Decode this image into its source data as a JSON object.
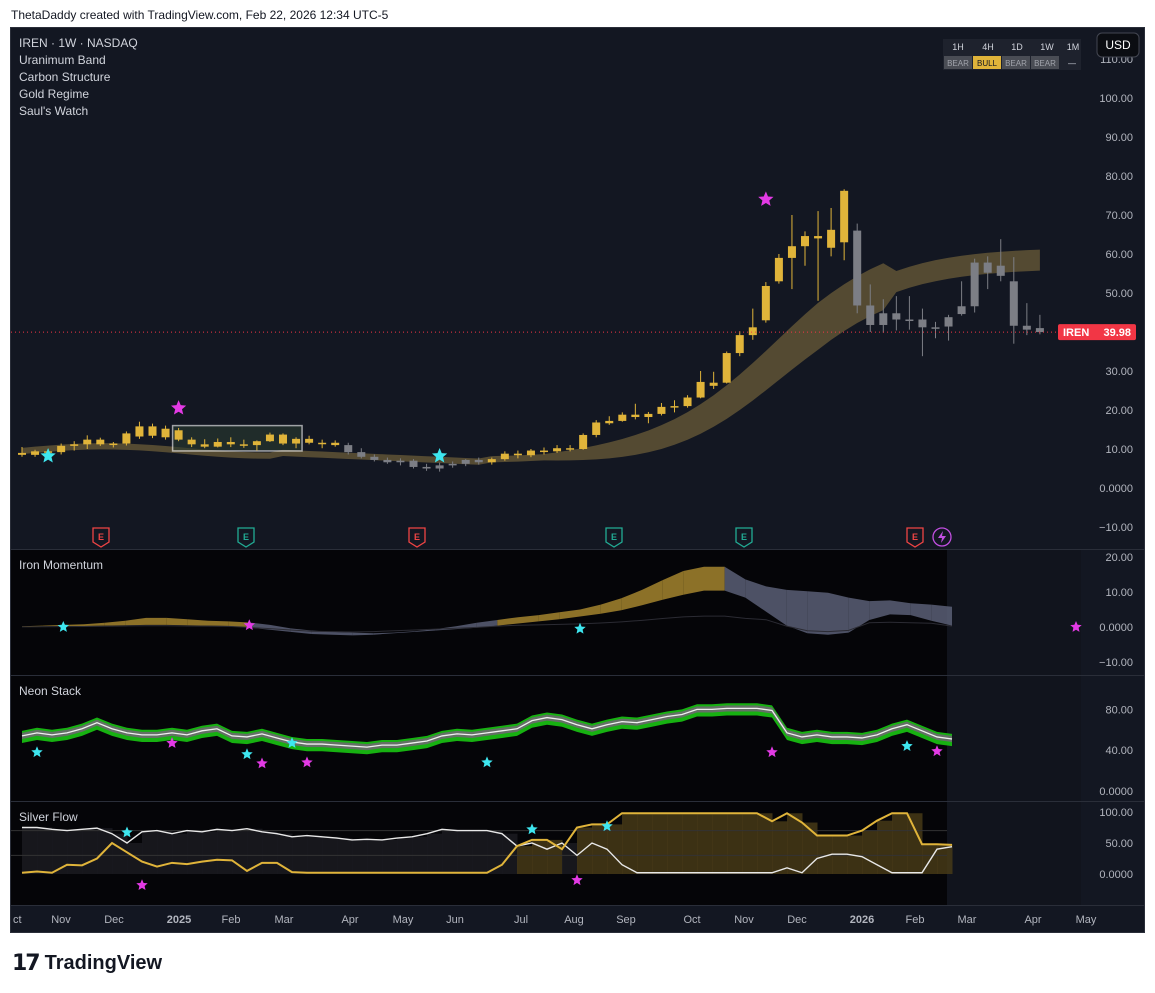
{
  "header": {
    "attribution": "ThetaDaddy created with TradingView.com, Feb 22, 2026 12:34 UTC-5"
  },
  "footer": {
    "logo_mark": "17",
    "logo_text": "TradingView"
  },
  "legend": {
    "symbol_line": "IREN · 1W · NASDAQ",
    "indicators": [
      "Uranimum Band",
      "Carbon Structure",
      "Gold Regime",
      "Saul's Watch"
    ]
  },
  "currency_button": "USD",
  "price_label": {
    "ticker": "IREN",
    "value": "39.98",
    "value_num": 39.98
  },
  "regime_table": {
    "timeframes": [
      "1H",
      "4H",
      "1D",
      "1W",
      "1M"
    ],
    "states": [
      "BEAR",
      "BULL",
      "BEAR",
      "BEAR",
      "—"
    ]
  },
  "earnings_markers": [
    "E",
    "E",
    "E",
    "E",
    "E",
    "E"
  ],
  "colors": {
    "bull": "#e0b43a",
    "bear": "#7c7e85",
    "band": "#8a7540",
    "band_bear": "#5a5f75",
    "cyan_star": "#3ee6ef",
    "magenta_star": "#e33ae5",
    "neon_green": "#19c413",
    "price_tag": "#f23645",
    "background": "#131722",
    "subpane_bg": "#050508"
  },
  "icons": {
    "star": "star-icon",
    "lightning": "lightning-icon"
  },
  "x_axis": {
    "labels": [
      "ct",
      "Nov",
      "Dec",
      "2025",
      "Feb",
      "Mar",
      "Apr",
      "May",
      "Jun",
      "Jul",
      "Aug",
      "Sep",
      "Oct",
      "Nov",
      "Dec",
      "2026",
      "Feb",
      "Mar",
      "Apr",
      "May"
    ]
  },
  "chart_data": [
    {
      "type": "candlestick",
      "title": "IREN · 1W · NASDAQ",
      "ylim": [
        -10,
        115
      ],
      "y_ticks": [
        "110.00",
        "100.00",
        "90.00",
        "80.00",
        "70.00",
        "60.00",
        "50.00",
        "40.00",
        "30.00",
        "20.00",
        "10.00",
        "0.0000",
        "−10.00"
      ],
      "last_price": 39.98,
      "candles": [
        {
          "o": 9.0,
          "h": 10.5,
          "l": 8.0,
          "c": 8.5
        },
        {
          "o": 8.5,
          "h": 9.8,
          "l": 8.0,
          "c": 9.4
        },
        {
          "o": 9.4,
          "h": 10.0,
          "l": 8.6,
          "c": 9.2
        },
        {
          "o": 9.2,
          "h": 11.4,
          "l": 8.6,
          "c": 10.8
        },
        {
          "o": 10.8,
          "h": 12.0,
          "l": 9.6,
          "c": 11.2
        },
        {
          "o": 11.2,
          "h": 13.5,
          "l": 10.0,
          "c": 12.4
        },
        {
          "o": 12.4,
          "h": 12.9,
          "l": 10.8,
          "c": 11.2
        },
        {
          "o": 11.2,
          "h": 11.8,
          "l": 10.4,
          "c": 11.4
        },
        {
          "o": 11.4,
          "h": 14.5,
          "l": 10.9,
          "c": 14.0
        },
        {
          "o": 13.2,
          "h": 17.0,
          "l": 12.6,
          "c": 15.8
        },
        {
          "o": 15.8,
          "h": 16.5,
          "l": 12.8,
          "c": 13.4
        },
        {
          "o": 13.0,
          "h": 16.0,
          "l": 12.4,
          "c": 15.2
        },
        {
          "o": 14.8,
          "h": 15.4,
          "l": 12.0,
          "c": 12.4
        },
        {
          "o": 12.4,
          "h": 13.0,
          "l": 10.5,
          "c": 11.2
        },
        {
          "o": 11.2,
          "h": 12.5,
          "l": 10.2,
          "c": 10.6
        },
        {
          "o": 10.6,
          "h": 12.7,
          "l": 10.4,
          "c": 11.8
        },
        {
          "o": 11.8,
          "h": 13.0,
          "l": 10.5,
          "c": 11.2
        },
        {
          "o": 11.2,
          "h": 12.4,
          "l": 10.3,
          "c": 11.0
        },
        {
          "o": 11.0,
          "h": 12.2,
          "l": 9.6,
          "c": 12.0
        },
        {
          "o": 12.0,
          "h": 14.2,
          "l": 11.8,
          "c": 13.7
        },
        {
          "o": 13.7,
          "h": 14.0,
          "l": 11.0,
          "c": 11.4
        },
        {
          "o": 11.4,
          "h": 13.0,
          "l": 10.2,
          "c": 12.6
        },
        {
          "o": 12.6,
          "h": 13.4,
          "l": 11.2,
          "c": 11.6
        },
        {
          "o": 11.6,
          "h": 12.4,
          "l": 10.2,
          "c": 11.6
        },
        {
          "o": 11.6,
          "h": 12.2,
          "l": 10.6,
          "c": 11.0
        },
        {
          "o": 11.0,
          "h": 11.6,
          "l": 8.6,
          "c": 9.2
        },
        {
          "o": 9.2,
          "h": 10.2,
          "l": 7.6,
          "c": 8.0
        },
        {
          "o": 8.0,
          "h": 8.6,
          "l": 6.8,
          "c": 7.2
        },
        {
          "o": 7.2,
          "h": 7.8,
          "l": 6.2,
          "c": 6.6
        },
        {
          "o": 6.6,
          "h": 7.6,
          "l": 5.8,
          "c": 7.0
        },
        {
          "o": 7.0,
          "h": 7.4,
          "l": 5.0,
          "c": 5.4
        },
        {
          "o": 5.4,
          "h": 6.2,
          "l": 4.4,
          "c": 5.0
        },
        {
          "o": 5.0,
          "h": 6.5,
          "l": 4.2,
          "c": 5.8
        },
        {
          "o": 5.8,
          "h": 6.8,
          "l": 5.2,
          "c": 6.2
        },
        {
          "o": 6.2,
          "h": 7.4,
          "l": 5.6,
          "c": 7.2
        },
        {
          "o": 7.2,
          "h": 7.8,
          "l": 6.0,
          "c": 6.6
        },
        {
          "o": 6.6,
          "h": 7.8,
          "l": 6.0,
          "c": 7.4
        },
        {
          "o": 7.4,
          "h": 9.4,
          "l": 7.0,
          "c": 8.8
        },
        {
          "o": 8.8,
          "h": 9.6,
          "l": 7.6,
          "c": 8.4
        },
        {
          "o": 8.4,
          "h": 10.0,
          "l": 7.9,
          "c": 9.6
        },
        {
          "o": 9.6,
          "h": 10.4,
          "l": 8.6,
          "c": 9.4
        },
        {
          "o": 9.4,
          "h": 11.0,
          "l": 9.0,
          "c": 10.2
        },
        {
          "o": 10.2,
          "h": 11.0,
          "l": 9.4,
          "c": 10.0
        },
        {
          "o": 10.0,
          "h": 14.0,
          "l": 9.8,
          "c": 13.6
        },
        {
          "o": 13.6,
          "h": 17.4,
          "l": 13.0,
          "c": 16.8
        },
        {
          "o": 16.6,
          "h": 18.4,
          "l": 16.2,
          "c": 17.2
        },
        {
          "o": 17.2,
          "h": 19.4,
          "l": 17.0,
          "c": 18.8
        },
        {
          "o": 18.8,
          "h": 21.6,
          "l": 17.6,
          "c": 18.2
        },
        {
          "o": 18.2,
          "h": 19.5,
          "l": 16.6,
          "c": 19.0
        },
        {
          "o": 19.0,
          "h": 21.8,
          "l": 18.6,
          "c": 20.8
        },
        {
          "o": 20.8,
          "h": 22.5,
          "l": 19.4,
          "c": 21.0
        },
        {
          "o": 21.0,
          "h": 23.8,
          "l": 20.6,
          "c": 23.2
        },
        {
          "o": 23.2,
          "h": 30.0,
          "l": 23.0,
          "c": 27.2
        },
        {
          "o": 26.2,
          "h": 29.8,
          "l": 25.4,
          "c": 27.0
        },
        {
          "o": 27.0,
          "h": 35.0,
          "l": 26.8,
          "c": 34.6
        },
        {
          "o": 34.6,
          "h": 40.2,
          "l": 33.8,
          "c": 39.2
        },
        {
          "o": 39.2,
          "h": 46.0,
          "l": 38.0,
          "c": 41.2
        },
        {
          "o": 43.0,
          "h": 52.8,
          "l": 42.4,
          "c": 51.8
        },
        {
          "o": 53.0,
          "h": 60.0,
          "l": 52.4,
          "c": 59.0
        },
        {
          "o": 59.0,
          "h": 70.0,
          "l": 51.0,
          "c": 62.0
        },
        {
          "o": 62.0,
          "h": 65.8,
          "l": 57.0,
          "c": 64.6
        },
        {
          "o": 64.0,
          "h": 71.0,
          "l": 48.0,
          "c": 64.6
        },
        {
          "o": 61.6,
          "h": 71.8,
          "l": 59.4,
          "c": 66.2
        },
        {
          "o": 63.0,
          "h": 76.6,
          "l": 58.4,
          "c": 76.2
        },
        {
          "o": 66.0,
          "h": 67.8,
          "l": 44.8,
          "c": 46.8
        },
        {
          "o": 46.8,
          "h": 52.2,
          "l": 40.0,
          "c": 41.8
        },
        {
          "o": 41.8,
          "h": 48.4,
          "l": 39.8,
          "c": 44.8
        },
        {
          "o": 44.8,
          "h": 49.2,
          "l": 40.4,
          "c": 43.2
        },
        {
          "o": 43.2,
          "h": 49.2,
          "l": 40.6,
          "c": 43.0
        },
        {
          "o": 43.2,
          "h": 46.0,
          "l": 33.8,
          "c": 41.2
        },
        {
          "o": 41.2,
          "h": 42.6,
          "l": 38.4,
          "c": 41.2
        },
        {
          "o": 41.4,
          "h": 44.4,
          "l": 37.8,
          "c": 43.8
        },
        {
          "o": 44.6,
          "h": 53.0,
          "l": 44.2,
          "c": 46.6
        },
        {
          "o": 46.6,
          "h": 58.8,
          "l": 45.0,
          "c": 57.8
        },
        {
          "o": 57.8,
          "h": 59.4,
          "l": 51.0,
          "c": 55.2
        },
        {
          "o": 57.0,
          "h": 63.8,
          "l": 53.0,
          "c": 54.4
        },
        {
          "o": 53.0,
          "h": 59.2,
          "l": 37.0,
          "c": 41.6
        },
        {
          "o": 41.6,
          "h": 47.4,
          "l": 39.2,
          "c": 40.6
        },
        {
          "o": 41.0,
          "h": 44.4,
          "l": 39.4,
          "c": 39.98
        }
      ],
      "annotations": [
        "cyan star near Oct 2024 low",
        "magenta star above Dec 2024 high",
        "cyan star near May 2025 breakout",
        "magenta star above Nov 2025 peak"
      ]
    },
    {
      "type": "area",
      "title": "Iron Momentum",
      "ylim": [
        -10,
        20
      ],
      "y_ticks": [
        "20.00",
        "10.00",
        "0.0000",
        "−10.00"
      ],
      "series": [
        {
          "name": "upper",
          "values": [
            0.2,
            0.4,
            0.6,
            0.8,
            1.2,
            1.8,
            2.6,
            2.6,
            2.2,
            1.8,
            1.6,
            1.3,
            0.6,
            -0.4,
            -1.0,
            -1.4,
            -1.6,
            -1.8,
            -1.6,
            -1.2,
            -0.6,
            0.2,
            1.2,
            2.0,
            2.8,
            3.4,
            4.2,
            5.0,
            6.4,
            8.2,
            10.6,
            13.4,
            16.0,
            17.2,
            17.2,
            13.6,
            11.6,
            10.6,
            10.2,
            9.8,
            8.4,
            7.4,
            7.6,
            6.8,
            6.4,
            5.8
          ]
        },
        {
          "name": "lower",
          "values": [
            0.1,
            0.2,
            0.3,
            0.3,
            0.4,
            0.5,
            0.6,
            0.6,
            0.5,
            0.4,
            0.3,
            -0.2,
            -0.8,
            -1.4,
            -2.0,
            -2.2,
            -2.4,
            -2.2,
            -1.8,
            -1.4,
            -1.0,
            -0.6,
            -0.2,
            0.4,
            1.0,
            1.6,
            2.2,
            3.0,
            3.8,
            4.8,
            6.2,
            7.8,
            9.2,
            10.4,
            10.4,
            8.4,
            4.4,
            0.4,
            -1.8,
            -2.2,
            -1.6,
            2.0,
            3.6,
            3.4,
            1.8,
            0.4
          ]
        }
      ],
      "markers": [
        {
          "kind": "cyan",
          "x_week": 2
        },
        {
          "kind": "magenta",
          "x_week": 11
        },
        {
          "kind": "cyan",
          "x_week": 31
        },
        {
          "kind": "magenta",
          "x_week": 58
        }
      ]
    },
    {
      "type": "line",
      "title": "Neon Stack",
      "ylim": [
        0,
        100
      ],
      "y_ticks": [
        "80.00",
        "40.00",
        "0.0000"
      ],
      "series": [
        {
          "name": "core",
          "values": [
            53,
            56,
            54,
            56,
            60,
            66,
            60,
            56,
            54,
            54,
            56,
            54,
            58,
            60,
            53,
            52,
            55,
            51,
            47,
            45,
            45,
            44,
            43,
            42,
            44,
            44,
            46,
            48,
            53,
            55,
            54,
            56,
            58,
            60,
            68,
            71,
            69,
            64,
            60,
            64,
            67,
            66,
            69,
            72,
            74,
            79,
            79,
            80,
            80,
            80,
            78,
            56,
            52,
            54,
            52,
            52,
            51,
            54,
            60,
            64,
            58,
            52,
            50
          ]
        }
      ],
      "markers": [
        {
          "kind": "cyan",
          "value": 38
        },
        {
          "kind": "magenta",
          "value": 47
        },
        {
          "kind": "cyan",
          "value": 36
        },
        {
          "kind": "magenta",
          "value": 27
        },
        {
          "kind": "cyan",
          "value": 47
        },
        {
          "kind": "magenta",
          "value": 28
        },
        {
          "kind": "cyan",
          "value": 28
        },
        {
          "kind": "magenta",
          "value": 38
        },
        {
          "kind": "cyan",
          "value": 44
        },
        {
          "kind": "magenta",
          "value": 39
        }
      ]
    },
    {
      "type": "line",
      "title": "Silver Flow",
      "ylim": [
        0,
        100
      ],
      "y_ticks": [
        "100.00",
        "50.00",
        "0.0000"
      ],
      "series": [
        {
          "name": "gold",
          "values": [
            2,
            4,
            2,
            15,
            14,
            25,
            50,
            35,
            20,
            12,
            18,
            16,
            20,
            23,
            22,
            5,
            18,
            18,
            3,
            2,
            2,
            2,
            2,
            2,
            2,
            2,
            2,
            2,
            2,
            2,
            2,
            2,
            15,
            45,
            55,
            55,
            40,
            75,
            80,
            80,
            98,
            98,
            98,
            98,
            98,
            98,
            98,
            98,
            98,
            98,
            85,
            98,
            83,
            62,
            62,
            62,
            70,
            86,
            98,
            98,
            48,
            48,
            47
          ]
        },
        {
          "name": "white",
          "values": [
            75,
            75,
            72,
            70,
            72,
            74,
            65,
            50,
            68,
            70,
            65,
            70,
            68,
            72,
            70,
            73,
            68,
            65,
            60,
            62,
            60,
            58,
            55,
            56,
            55,
            58,
            60,
            65,
            72,
            70,
            70,
            70,
            65,
            45,
            50,
            40,
            50,
            30,
            50,
            40,
            15,
            2,
            2,
            2,
            2,
            2,
            2,
            2,
            2,
            2,
            2,
            10,
            2,
            25,
            32,
            32,
            28,
            15,
            2,
            2,
            2,
            40,
            44
          ]
        }
      ],
      "markers": [
        {
          "kind": "cyan",
          "value": 67
        },
        {
          "kind": "magenta",
          "value": -18
        },
        {
          "kind": "cyan",
          "value": 72
        },
        {
          "kind": "magenta",
          "value": -10
        },
        {
          "kind": "cyan",
          "value": 77
        }
      ]
    }
  ]
}
